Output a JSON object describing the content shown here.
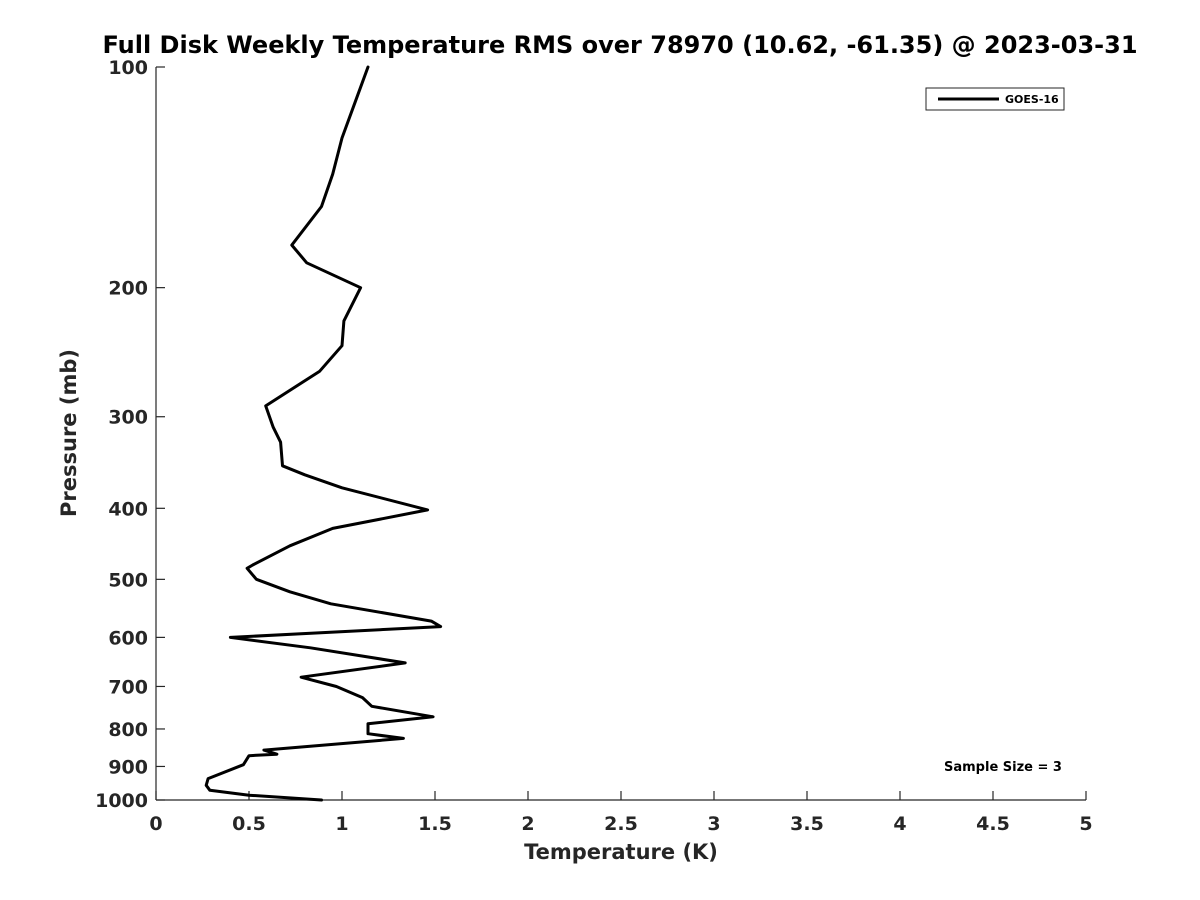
{
  "chart_data": {
    "type": "line",
    "title": "Full Disk Weekly Temperature RMS over 78970 (10.62, -61.35) @ 2023-03-31",
    "xlabel": "Temperature (K)",
    "ylabel": "Pressure (mb)",
    "xlim": [
      0,
      5
    ],
    "ylim": [
      100,
      1000
    ],
    "yscale": "log",
    "y_reversed": true,
    "grid": false,
    "x_ticks": [
      "0",
      "0.5",
      "1",
      "1.5",
      "2",
      "2.5",
      "3",
      "3.5",
      "4",
      "4.5",
      "5"
    ],
    "y_ticks": [
      "100",
      "200",
      "300",
      "400",
      "500",
      "600",
      "700",
      "800",
      "900",
      "1000"
    ],
    "legend": {
      "position": "top-right",
      "entries": [
        "GOES-16"
      ]
    },
    "annotation": "Sample Size = 3",
    "series": [
      {
        "name": "GOES-16",
        "color": "#000000",
        "x": [
          1.14,
          1.08,
          1.0,
          0.95,
          0.89,
          0.73,
          0.81,
          1.1,
          1.01,
          1.0,
          0.88,
          0.59,
          0.63,
          0.67,
          0.68,
          0.8,
          1.0,
          1.46,
          0.95,
          0.72,
          0.52,
          0.49,
          0.54,
          0.72,
          0.94,
          1.48,
          1.53,
          0.4,
          0.83,
          1.34,
          0.78,
          0.97,
          1.11,
          1.16,
          1.49,
          1.14,
          1.14,
          1.33,
          0.58,
          0.65,
          0.5,
          0.47,
          0.28,
          0.27,
          0.29,
          0.5,
          0.89
        ],
        "y": [
          100,
          110,
          125,
          140,
          155,
          175,
          185,
          200,
          222,
          240,
          260,
          290,
          310,
          325,
          350,
          360,
          375,
          402,
          426,
          450,
          478,
          483,
          500,
          520,
          540,
          570,
          580,
          600,
          620,
          650,
          680,
          700,
          725,
          745,
          770,
          787,
          812,
          824,
          855,
          866,
          870,
          895,
          935,
          955,
          970,
          985,
          1000
        ]
      }
    ]
  }
}
